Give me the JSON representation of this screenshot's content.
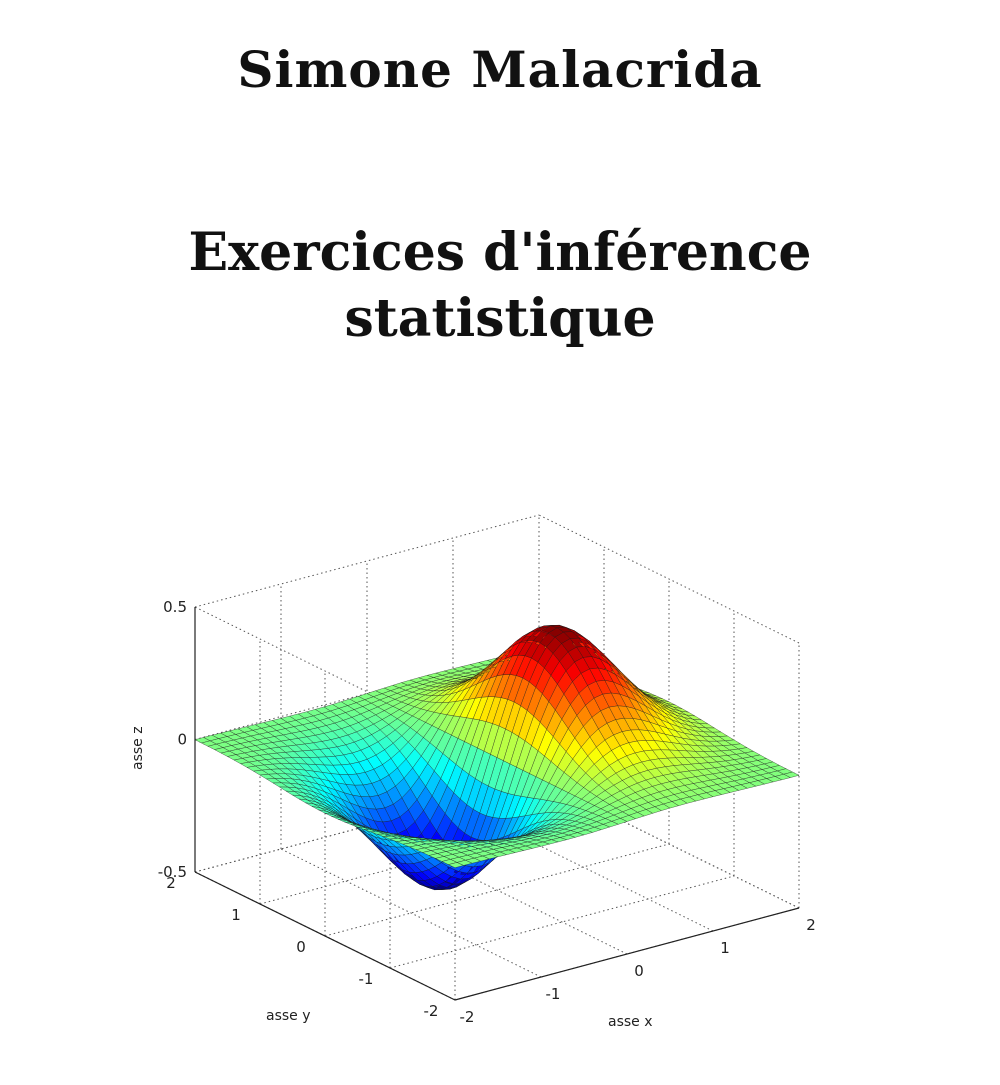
{
  "cover": {
    "author": "Simone Malacrida",
    "title_line1": "Exercices d'inférence",
    "title_line2": "statistique"
  },
  "chart_data": {
    "type": "surface",
    "title": "",
    "xlabel": "asse x",
    "ylabel": "asse y",
    "zlabel": "asse z",
    "xlim": [
      -2,
      2
    ],
    "ylim": [
      -2,
      2
    ],
    "zlim": [
      -0.5,
      0.5
    ],
    "x_ticks": [
      "-2",
      "-1",
      "0",
      "1",
      "2"
    ],
    "y_ticks": [
      "-2",
      "-1",
      "0",
      "1",
      "2"
    ],
    "z_ticks": [
      "-0.5",
      "0",
      "0.5"
    ],
    "function": "z = x * exp(-x^2 - y^2)",
    "grid": true,
    "colormap": "jet"
  }
}
